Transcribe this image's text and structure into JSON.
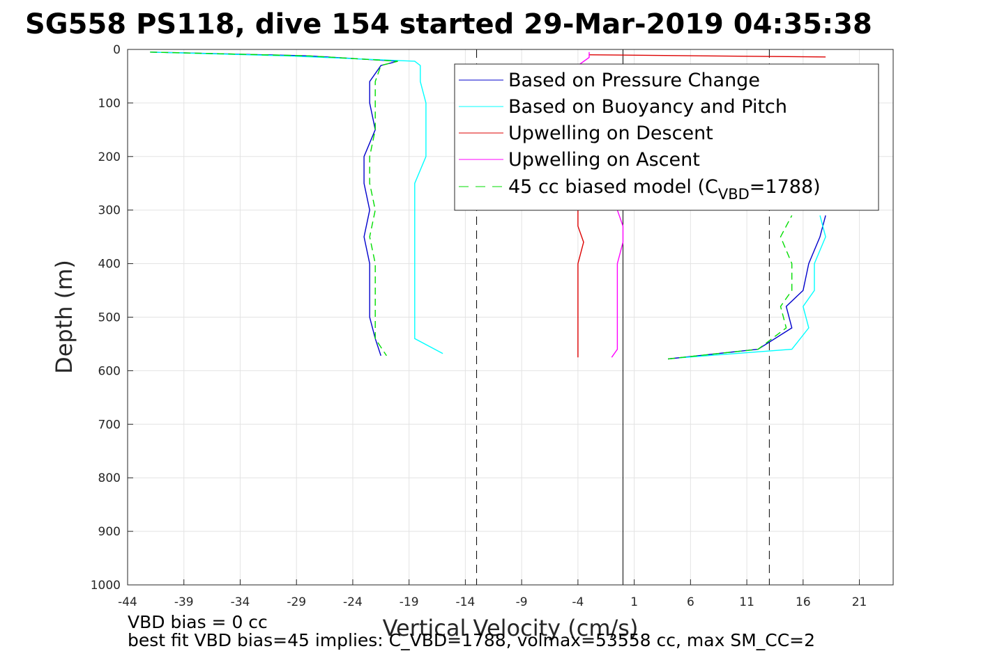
{
  "chart_data": {
    "type": "line",
    "title": "SG558 PS118, dive 154 started 29-Mar-2019 04:35:38",
    "xlabel": "Vertical Velocity (cm/s)",
    "ylabel": "Depth (m)",
    "xlim": [
      -44,
      24
    ],
    "ylim": [
      0,
      1000
    ],
    "y_reversed": true,
    "grid": true,
    "xticks": [
      -44,
      -39,
      -34,
      -29,
      -24,
      -19,
      -14,
      -9,
      -4,
      1,
      6,
      11,
      16,
      21
    ],
    "yticks": [
      0,
      100,
      200,
      300,
      400,
      500,
      600,
      700,
      800,
      900,
      1000
    ],
    "legend_position": "top-right",
    "reference_lines": [
      {
        "x": -13,
        "style": "dashed",
        "color": "#000000"
      },
      {
        "x": 0,
        "style": "solid",
        "color": "#000000"
      },
      {
        "x": 13,
        "style": "dashed",
        "color": "#000000"
      }
    ],
    "series": [
      {
        "name": "Based on Pressure Change",
        "color": "#0000cc",
        "descent": {
          "depth": [
            5,
            12,
            22,
            30,
            60,
            100,
            150,
            200,
            250,
            300,
            350,
            400,
            450,
            500,
            540,
            572
          ],
          "velocity": [
            -42,
            -28,
            -20,
            -21.5,
            -22.5,
            -22.5,
            -22,
            -23,
            -23,
            -22.5,
            -23,
            -22.5,
            -22.5,
            -22.5,
            -22,
            -21.5
          ]
        },
        "ascent": {
          "depth": [
            578,
            560,
            520,
            480,
            450,
            400,
            350,
            310
          ],
          "velocity": [
            4,
            12,
            15,
            14.5,
            16,
            16.5,
            17.5,
            18
          ]
        }
      },
      {
        "name": "Based on Buoyancy and Pitch",
        "color": "#00ffff",
        "descent": {
          "depth": [
            5,
            12,
            22,
            30,
            60,
            100,
            150,
            200,
            250,
            300,
            350,
            400,
            450,
            500,
            540,
            568
          ],
          "velocity": [
            -42,
            -30,
            -18.5,
            -18,
            -18,
            -17.5,
            -17.5,
            -17.5,
            -18.5,
            -18.5,
            -18.5,
            -18.5,
            -18.5,
            -18.5,
            -18.5,
            -16
          ]
        },
        "ascent": {
          "depth": [
            576,
            560,
            520,
            480,
            450,
            400,
            350,
            310
          ],
          "velocity": [
            5,
            15,
            16.5,
            16,
            17,
            17,
            18,
            17.5
          ]
        }
      },
      {
        "name": "Upwelling on Descent",
        "color": "#dd0000",
        "descent": {
          "depth": [
            300,
            330,
            360,
            400,
            440,
            480,
            520,
            560,
            575
          ],
          "velocity": [
            -4,
            -4,
            -3.5,
            -4,
            -4,
            -4,
            -4,
            -4,
            -4
          ]
        },
        "ascent": {
          "depth": [
            10,
            14
          ],
          "velocity": [
            -3,
            18
          ]
        }
      },
      {
        "name": "Upwelling on Ascent",
        "color": "#ff00ff",
        "descent": {
          "depth": [
            300,
            330,
            360,
            400,
            440,
            480,
            520,
            560,
            575
          ],
          "velocity": [
            -0.5,
            0,
            0,
            -0.5,
            -0.5,
            -0.5,
            -0.5,
            -0.5,
            -1
          ]
        },
        "ascent": {
          "depth": [
            5,
            15,
            30
          ],
          "velocity": [
            -3,
            -3,
            -4
          ]
        }
      },
      {
        "name": "45 cc biased model (C_VBD=1788)",
        "color": "#00dd00",
        "style": "dashed",
        "descent": {
          "depth": [
            5,
            12,
            22,
            30,
            60,
            100,
            150,
            200,
            250,
            300,
            350,
            400,
            450,
            500,
            540,
            572
          ],
          "velocity": [
            -42,
            -28,
            -20,
            -21.5,
            -22,
            -22,
            -22,
            -22.5,
            -22.5,
            -22,
            -22.5,
            -22,
            -22,
            -22,
            -22,
            -21
          ]
        },
        "ascent": {
          "depth": [
            578,
            560,
            520,
            480,
            450,
            400,
            350,
            310
          ],
          "velocity": [
            4,
            12,
            14.5,
            14,
            15,
            15,
            14,
            15
          ]
        }
      }
    ],
    "legend_labels": {
      "pressure": "Based on Pressure Change",
      "buoyancy": "Based on Buoyancy and Pitch",
      "up_descent": "Upwelling on Descent",
      "up_ascent": "Upwelling on Ascent",
      "model_prefix": "45 cc biased model (C",
      "model_sub": "VBD",
      "model_suffix": "=1788)"
    }
  },
  "annotations": {
    "vbd_bias": "VBD bias = 0 cc",
    "best_fit": "best fit VBD bias=45 implies: C_VBD=1788, volmax=53558 cc, max SM_CC=2"
  }
}
